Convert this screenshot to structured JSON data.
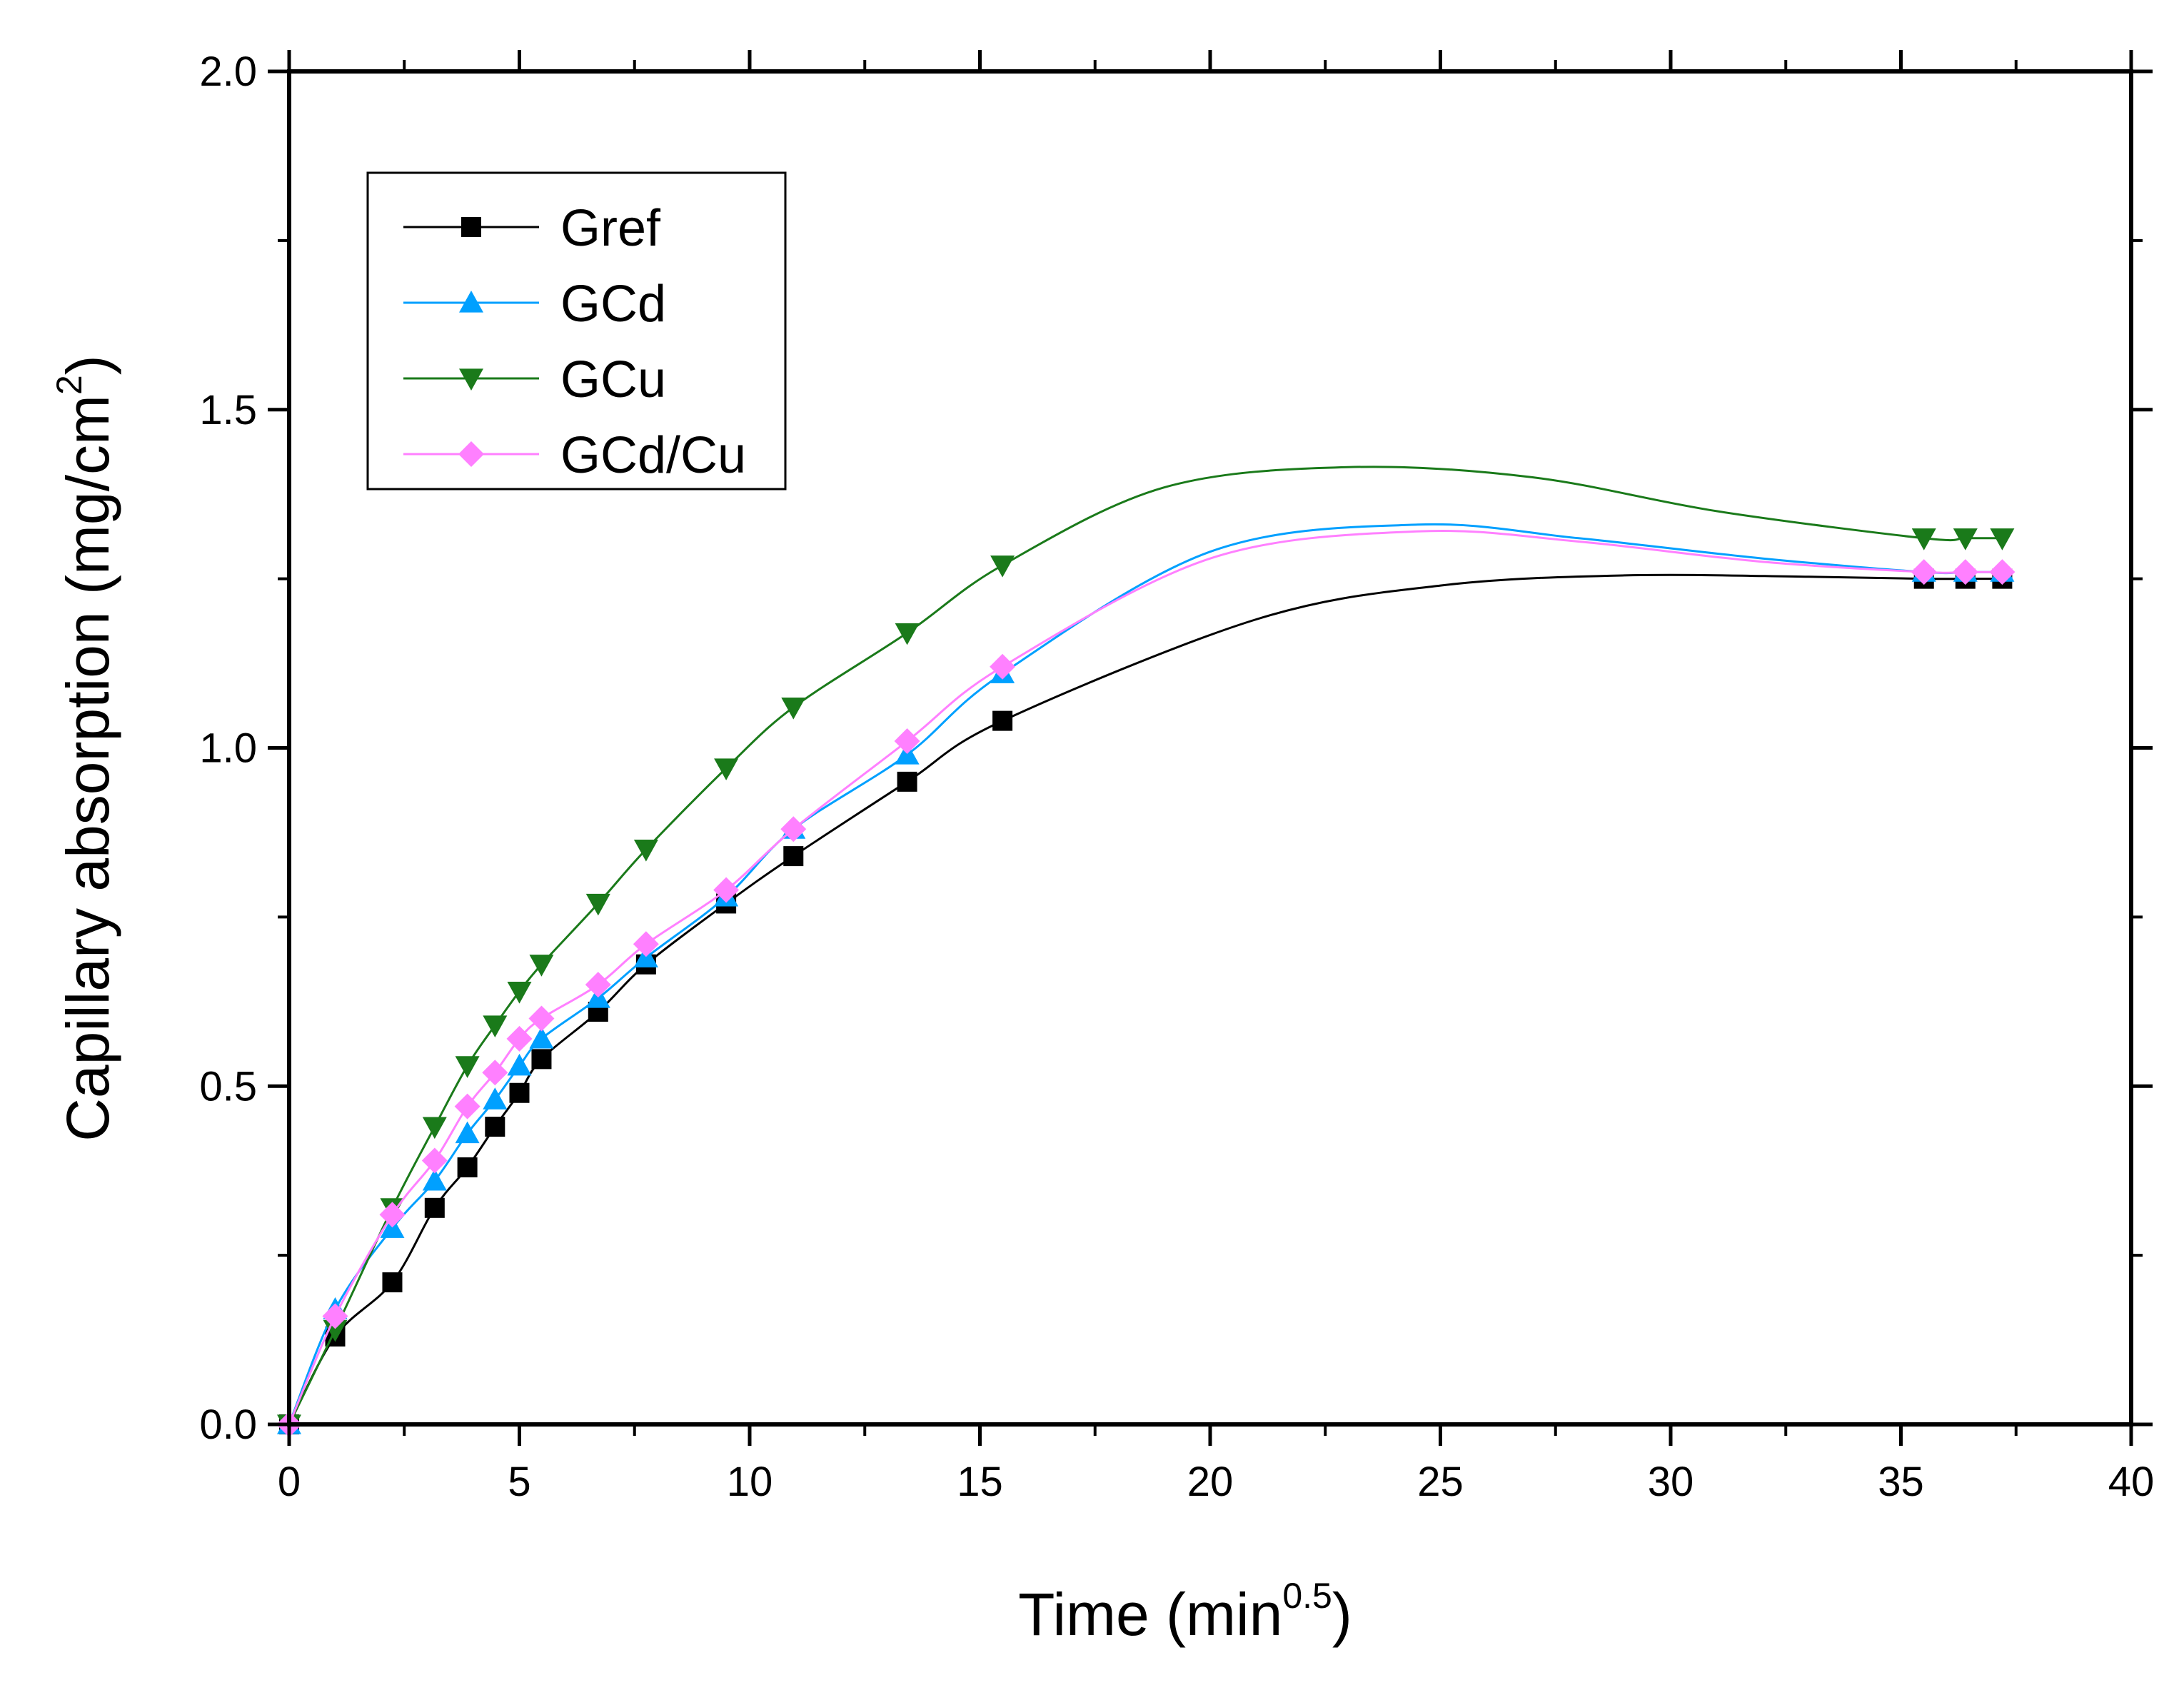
{
  "chart_data": {
    "type": "line",
    "title": "",
    "xlabel": "Time (min",
    "xlabel_sup": "0.5",
    "xlabel_end": ")",
    "ylabel": "Capillary absorption (mg/cm",
    "ylabel_sup": "2",
    "ylabel_end": ")",
    "xlim": [
      0,
      40
    ],
    "ylim": [
      0,
      2.0
    ],
    "x_ticks": [
      0,
      5,
      10,
      15,
      20,
      25,
      30,
      35,
      40
    ],
    "x_tick_labels": [
      "0",
      "5",
      "10",
      "15",
      "20",
      "25",
      "30",
      "35",
      "40"
    ],
    "y_ticks": [
      0,
      0.5,
      1.0,
      1.5,
      2.0
    ],
    "y_tick_labels": [
      "0.0",
      "0.5",
      "1.0",
      "1.5",
      "2.0"
    ],
    "grid": false,
    "legend_position": "top-left",
    "x": [
      0,
      1,
      2.24,
      3.16,
      3.87,
      4.47,
      5,
      5.48,
      6.71,
      7.75,
      9.49,
      10.95,
      13.42,
      15.49,
      35.5,
      36.4,
      37.2
    ],
    "series": [
      {
        "name": "Gref",
        "color": "#000000",
        "marker": "square",
        "values": [
          0,
          0.13,
          0.21,
          0.32,
          0.38,
          0.44,
          0.49,
          0.54,
          0.61,
          0.68,
          0.77,
          0.84,
          0.95,
          1.04,
          1.25,
          1.25,
          1.25
        ],
        "curve_extra": [
          [
            21,
            1.19
          ],
          [
            25,
            1.24
          ],
          [
            29,
            1.255
          ],
          [
            33,
            1.253
          ]
        ]
      },
      {
        "name": "GCd",
        "color": "#00a0ff",
        "marker": "triangle-up",
        "values": [
          0,
          0.17,
          0.29,
          0.36,
          0.43,
          0.48,
          0.53,
          0.57,
          0.63,
          0.69,
          0.78,
          0.88,
          0.99,
          1.11,
          1.26,
          1.26,
          1.26
        ],
        "curve_extra": [
          [
            20,
            1.29
          ],
          [
            24.5,
            1.33
          ],
          [
            28,
            1.31
          ],
          [
            32,
            1.28
          ]
        ]
      },
      {
        "name": "GCu",
        "color": "#1a7a1a",
        "marker": "triangle-down",
        "values": [
          0,
          0.14,
          0.32,
          0.44,
          0.53,
          0.59,
          0.64,
          0.68,
          0.77,
          0.85,
          0.97,
          1.06,
          1.17,
          1.27,
          1.31,
          1.31,
          1.31
        ],
        "curve_extra": [
          [
            19,
            1.385
          ],
          [
            23,
            1.415
          ],
          [
            27,
            1.4
          ],
          [
            31,
            1.35
          ]
        ]
      },
      {
        "name": "GCd/Cu",
        "color": "#ff80ff",
        "marker": "diamond",
        "values": [
          0,
          0.16,
          0.31,
          0.39,
          0.47,
          0.52,
          0.57,
          0.6,
          0.65,
          0.71,
          0.79,
          0.88,
          1.01,
          1.12,
          1.26,
          1.26,
          1.26
        ],
        "curve_extra": [
          [
            20,
            1.28
          ],
          [
            24.5,
            1.32
          ],
          [
            28,
            1.305
          ],
          [
            32,
            1.275
          ]
        ]
      }
    ]
  }
}
